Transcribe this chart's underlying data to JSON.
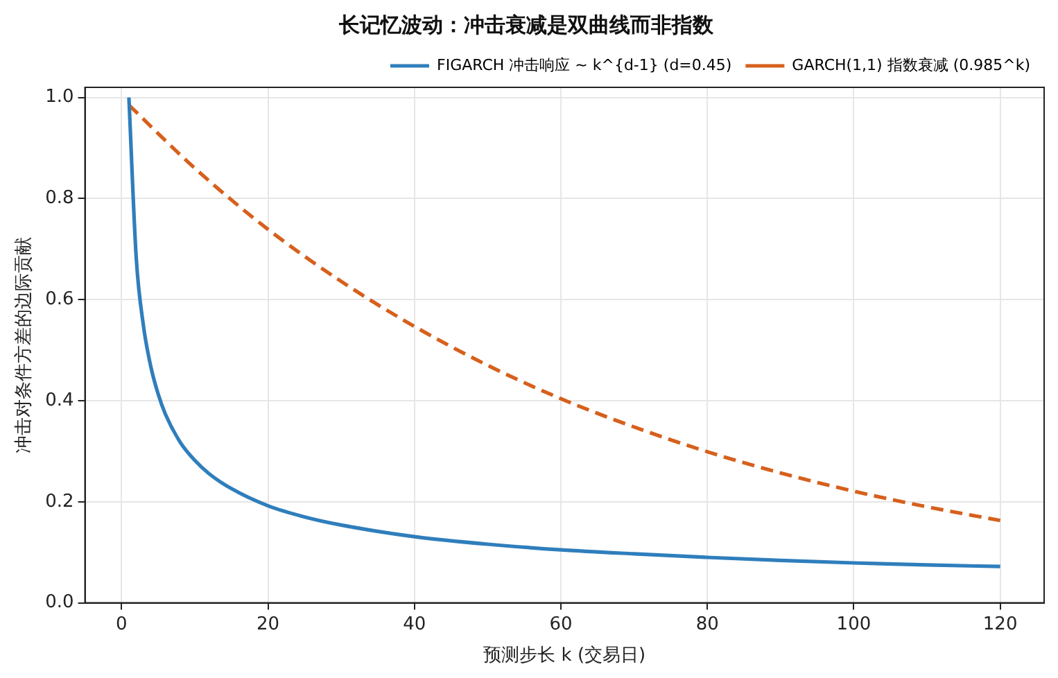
{
  "chart_data": {
    "type": "line",
    "title": "长记忆波动：冲击衰减是双曲线而非指数",
    "xlabel": "预测步长 k (交易日)",
    "ylabel": "冲击对条件方差的边际贡献",
    "xlim": [
      -5,
      126
    ],
    "xticks": [
      0,
      20,
      40,
      60,
      80,
      100,
      120
    ],
    "ylim": [
      0,
      1.02
    ],
    "yticks": [
      {
        "value": 0,
        "label": "0.0"
      },
      {
        "value": 0.2,
        "label": "0.2"
      },
      {
        "value": 0.4,
        "label": "0.4"
      },
      {
        "value": 0.6,
        "label": "0.6"
      },
      {
        "value": 0.8,
        "label": "0.8"
      },
      {
        "value": 1,
        "label": "1.0"
      }
    ],
    "grid": true,
    "legend": "top right",
    "marker": "none",
    "series": [
      {
        "name": "FIGARCH 冲击响应 ~ k^{d-1} (d=0.45)",
        "color": "#2f7ebc",
        "line_style": "solid",
        "x": [
          1,
          2,
          3,
          4,
          5,
          6,
          8,
          10,
          12,
          15,
          20,
          25,
          30,
          40,
          50,
          60,
          70,
          80,
          90,
          100,
          110,
          120
        ],
        "values": [
          1,
          0.683,
          0.547,
          0.467,
          0.413,
          0.373,
          0.318,
          0.282,
          0.255,
          0.226,
          0.192,
          0.17,
          0.154,
          0.131,
          0.116,
          0.105,
          0.097,
          0.09,
          0.084,
          0.079,
          0.075,
          0.072
        ]
      },
      {
        "name": "GARCH(1,1) 指数衰减 (0.985^k)",
        "color": "#d6601c",
        "line_style": "dashed",
        "x": [
          1,
          10,
          20,
          30,
          40,
          50,
          60,
          70,
          80,
          90,
          100,
          110,
          120
        ],
        "values": [
          0.985,
          0.86,
          0.739,
          0.636,
          0.547,
          0.47,
          0.404,
          0.348,
          0.299,
          0.257,
          0.221,
          0.19,
          0.163
        ]
      }
    ]
  }
}
